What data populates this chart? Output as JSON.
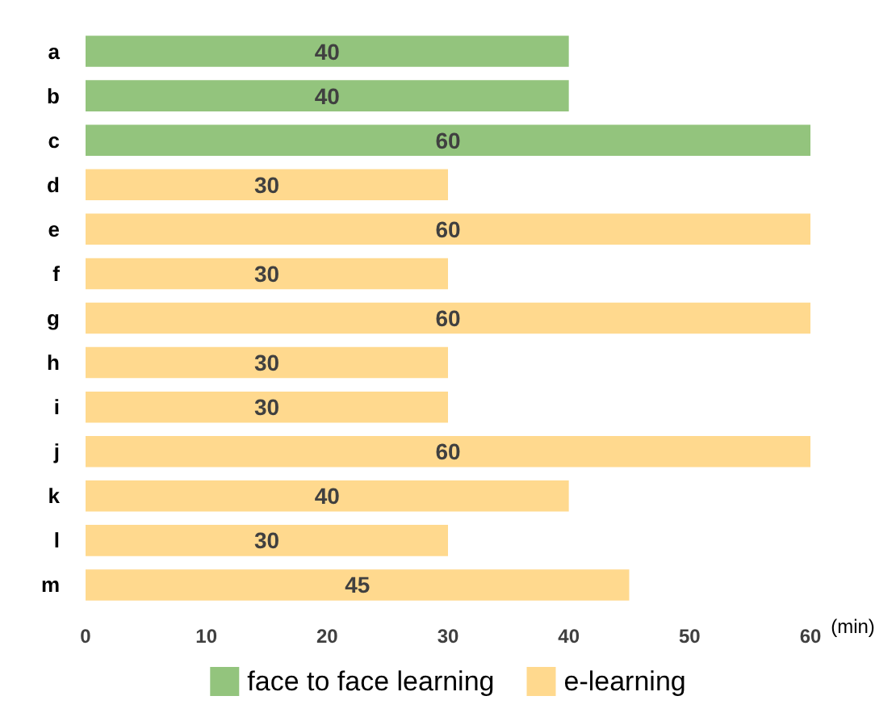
{
  "chart_data": {
    "type": "bar",
    "orientation": "horizontal",
    "categories": [
      "a",
      "b",
      "c",
      "d",
      "e",
      "f",
      "g",
      "h",
      "i",
      "j",
      "k",
      "l",
      "m"
    ],
    "series": [
      {
        "name": "face to face learning",
        "color": "#93c47d",
        "values": [
          40,
          40,
          60,
          null,
          null,
          null,
          null,
          null,
          null,
          null,
          null,
          null,
          null
        ]
      },
      {
        "name": "e-learning",
        "color": "#ffd98e",
        "values": [
          null,
          null,
          null,
          30,
          60,
          30,
          60,
          30,
          30,
          60,
          40,
          30,
          45
        ]
      }
    ],
    "xlim": [
      0,
      60
    ],
    "xticks": [
      0,
      10,
      20,
      30,
      40,
      50,
      60
    ],
    "xlabel": "(min)",
    "data_labels": true,
    "legend": "bottom",
    "grid": false
  }
}
